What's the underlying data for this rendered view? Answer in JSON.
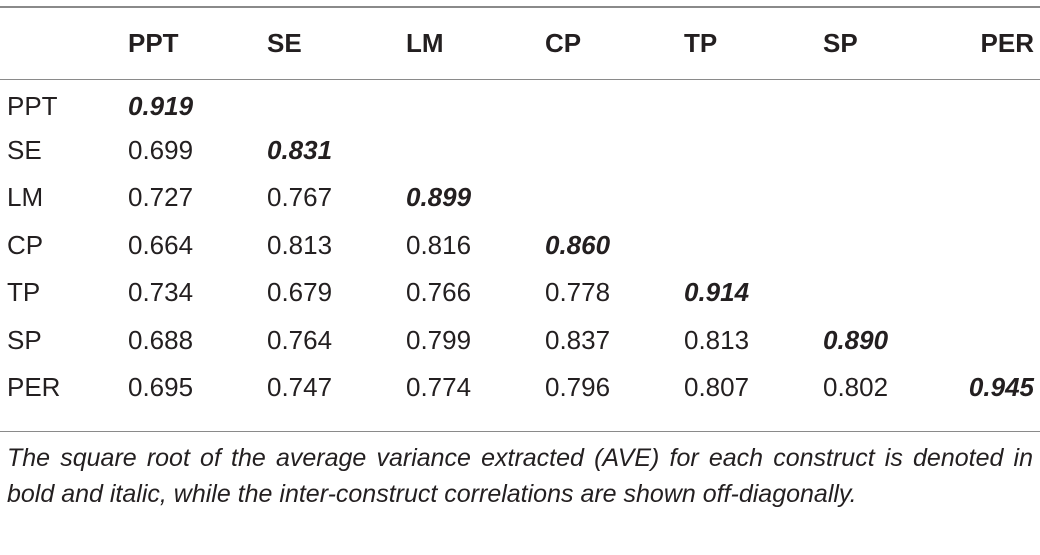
{
  "table": {
    "headers": [
      "",
      "PPT",
      "SE",
      "LM",
      "CP",
      "TP",
      "SP",
      "PER"
    ],
    "rows": [
      {
        "label": "PPT",
        "cells": [
          "0.919",
          "",
          "",
          "",
          "",
          "",
          ""
        ]
      },
      {
        "label": "SE",
        "cells": [
          "0.699",
          "0.831",
          "",
          "",
          "",
          "",
          ""
        ]
      },
      {
        "label": "LM",
        "cells": [
          "0.727",
          "0.767",
          "0.899",
          "",
          "",
          "",
          ""
        ]
      },
      {
        "label": "CP",
        "cells": [
          "0.664",
          "0.813",
          "0.816",
          "0.860",
          "",
          "",
          ""
        ]
      },
      {
        "label": "TP",
        "cells": [
          "0.734",
          "0.679",
          "0.766",
          "0.778",
          "0.914",
          "",
          ""
        ]
      },
      {
        "label": "SP",
        "cells": [
          "0.688",
          "0.764",
          "0.799",
          "0.837",
          "0.813",
          "0.890",
          ""
        ]
      },
      {
        "label": "PER",
        "cells": [
          "0.695",
          "0.747",
          "0.774",
          "0.796",
          "0.807",
          "0.802",
          "0.945"
        ]
      }
    ]
  },
  "footnote": "The square root of the average variance extracted (AVE) for each construct is denoted in bold and italic, while the inter-construct correlations are shown off-diagonally."
}
